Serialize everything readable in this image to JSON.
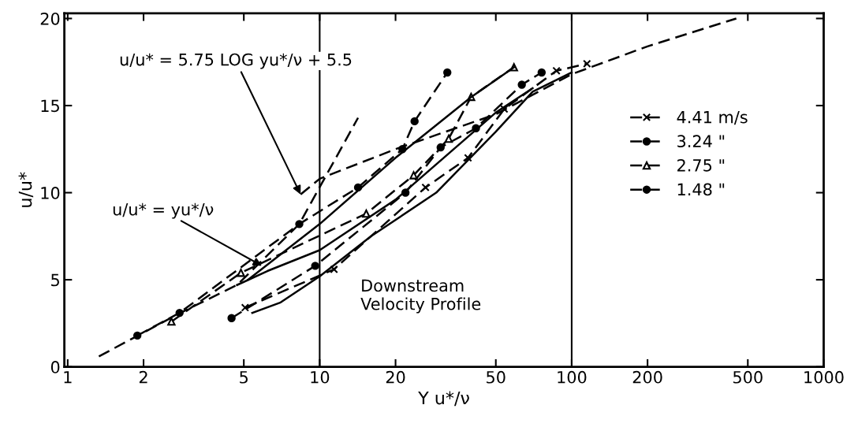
{
  "chart_data": {
    "type": "line",
    "xlabel": "Y u*/ν",
    "ylabel": "u/u*",
    "log": "x",
    "xlim": [
      0.97,
      1000
    ],
    "xticks": [
      1,
      2,
      5,
      10,
      20,
      50,
      100,
      200,
      500,
      1000
    ],
    "ylim": [
      0,
      20.3
    ],
    "yticks": [
      0,
      5,
      10,
      15,
      20
    ],
    "grid": false,
    "legend": "right",
    "series": [
      {
        "name": "4.41 m/s",
        "color": "#000000",
        "marker": "cross",
        "line_style": "dashed",
        "x": [
          5.06,
          11.4,
          26.3,
          38.8,
          54,
          87,
          115
        ],
        "values": [
          3.4,
          5.6,
          10.3,
          12.0,
          14.8,
          17.0,
          17.4
        ]
      },
      {
        "name": "3.24 \"",
        "color": "#000000",
        "marker": "circle",
        "line_style": "dashed",
        "x": [
          4.47,
          9.6,
          21.9,
          30.2,
          41.7,
          63.4,
          76
        ],
        "values": [
          2.8,
          5.8,
          10.0,
          12.6,
          13.7,
          16.2,
          16.9
        ]
      },
      {
        "name": "2.75 \"",
        "color": "#000000",
        "marker": "triangle",
        "line_style": "dashed",
        "x": [
          2.58,
          4.87,
          15.3,
          23.6,
          32.5,
          39.9,
          59
        ],
        "values": [
          2.6,
          5.4,
          8.8,
          11.0,
          13.1,
          15.5,
          17.2
        ]
      },
      {
        "name": "1.48 \"",
        "color": "#000000",
        "marker": "circle",
        "line_style": "dashed",
        "x": [
          1.89,
          2.78,
          8.3,
          14.2,
          21.3,
          23.8,
          32.1
        ],
        "values": [
          1.8,
          3.1,
          8.2,
          10.3,
          12.5,
          14.1,
          16.9
        ]
      },
      {
        "color": "#000000",
        "marker": "none",
        "line_style": "dashed",
        "x": [
          8.4,
          10,
          20,
          50,
          100,
          200,
          450
        ],
        "values": [
          9.9,
          10.8,
          12.5,
          14.5,
          16.8,
          18.4,
          20.0
        ]
      },
      {
        "color": "#000000",
        "marker": "none",
        "line_style": "dashed",
        "x": [
          1.33,
          2.8,
          4.7,
          8.3,
          14.2
        ],
        "values": [
          0.6,
          3.1,
          4.7,
          8.2,
          14.3
        ]
      },
      {
        "color": "#000000",
        "marker": "none",
        "line_style": "solid",
        "x": [
          5.4,
          7,
          10,
          16,
          29,
          50,
          70,
          100
        ],
        "values": [
          3.1,
          3.7,
          5.2,
          7.5,
          10.0,
          13.5,
          15.8,
          16.9
        ]
      },
      {
        "color": "#000000",
        "marker": "none",
        "line_style": "solid",
        "x": [
          4.7,
          6.2,
          10,
          20,
          50,
          70
        ],
        "values": [
          4.7,
          5.5,
          6.7,
          9.6,
          14.6,
          16.0
        ]
      },
      {
        "color": "#000000",
        "marker": "none",
        "line_style": "solid",
        "x": [
          5.2,
          10,
          20,
          40,
          59
        ],
        "values": [
          5.0,
          8.2,
          12.0,
          15.5,
          17.2
        ]
      }
    ],
    "ref_lines": [
      {
        "axis": "x",
        "value": 10,
        "color": "#000000",
        "line_style": "solid"
      },
      {
        "axis": "x",
        "value": 100,
        "color": "#000000",
        "line_style": "solid"
      }
    ],
    "annotations": [
      {
        "text": "u/u* = 5.75 LOG yu*/ν + 5.5",
        "x": 8.4,
        "y": 9.9
      },
      {
        "text": "u/u* = yu*/ν",
        "x": 5.9,
        "y": 5.8
      },
      "Downstream\nVelocity Profile"
    ]
  }
}
